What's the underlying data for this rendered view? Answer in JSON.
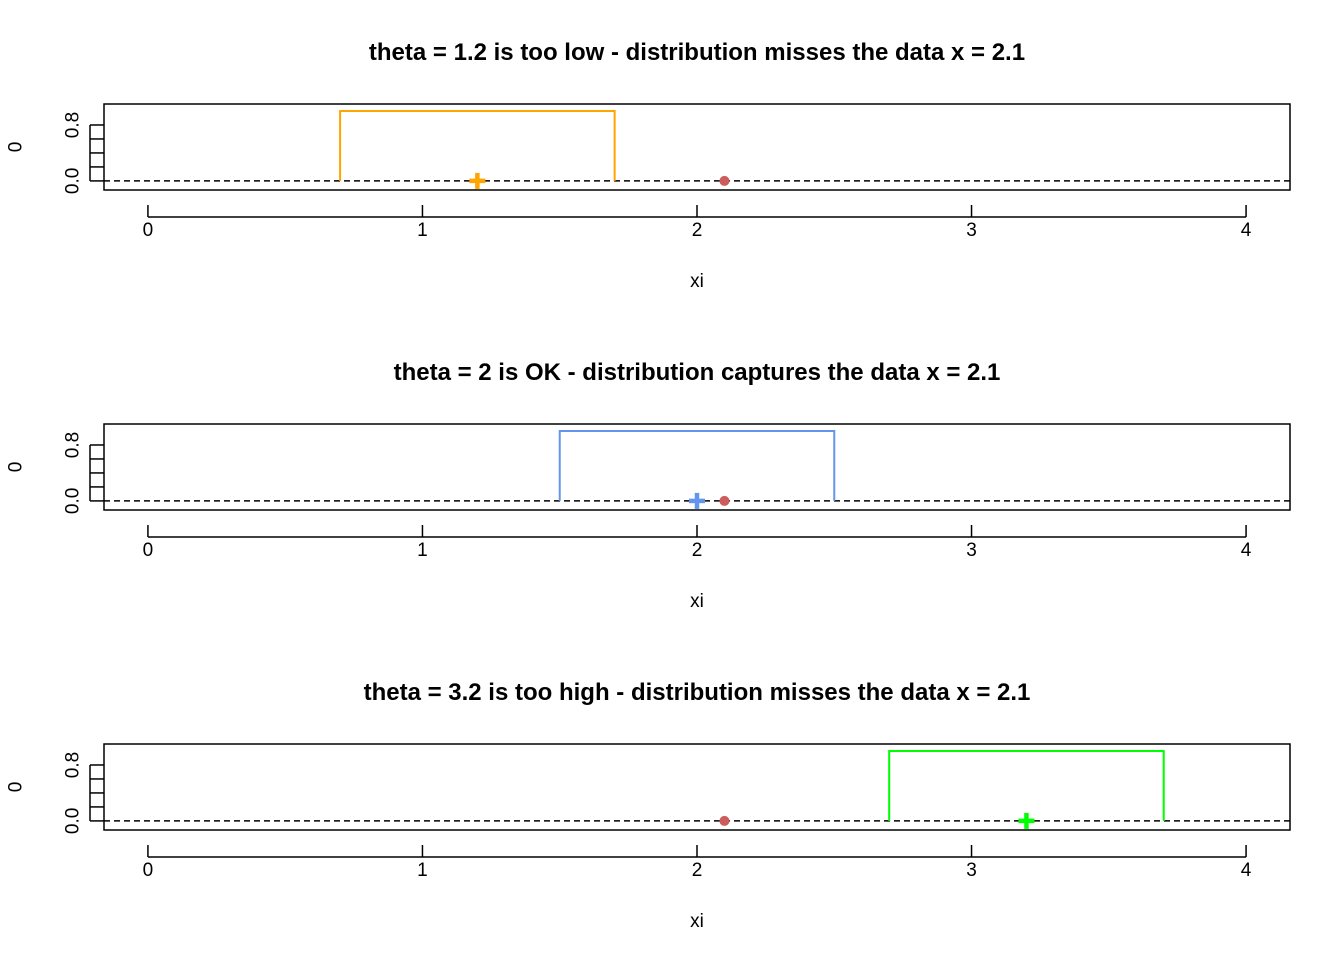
{
  "chart_data": [
    {
      "type": "line",
      "title": "theta = 1.2 is too low - distribution misses the data x = 2.1",
      "xlabel": "xi",
      "ylabel": "0",
      "xlim": [
        -0.16,
        4.16
      ],
      "ylim": [
        -0.13,
        1.1
      ],
      "x_ticks": [
        "0",
        "1",
        "2",
        "3",
        "4"
      ],
      "y_ticks": [
        "0.0",
        "0.8"
      ],
      "theta": 1.2,
      "x_data": 2.1,
      "uniform_density": {
        "from": 0.7,
        "to": 1.7,
        "height": 1.0
      },
      "density_color": "#FFA500",
      "theta_marker_color": "#FFA500",
      "data_point_color": "#CD5C5C",
      "baseline": 0
    },
    {
      "type": "line",
      "title": "theta = 2 is OK - distribution captures the data x = 2.1",
      "xlabel": "xi",
      "ylabel": "0",
      "xlim": [
        -0.16,
        4.16
      ],
      "ylim": [
        -0.13,
        1.1
      ],
      "x_ticks": [
        "0",
        "1",
        "2",
        "3",
        "4"
      ],
      "y_ticks": [
        "0.0",
        "0.8"
      ],
      "theta": 2.0,
      "x_data": 2.1,
      "uniform_density": {
        "from": 1.5,
        "to": 2.5,
        "height": 1.0
      },
      "density_color": "#6495ED",
      "theta_marker_color": "#6495ED",
      "data_point_color": "#CD5C5C",
      "baseline": 0
    },
    {
      "type": "line",
      "title": "theta = 3.2 is too high - distribution misses the data x = 2.1",
      "xlabel": "xi",
      "ylabel": "0",
      "xlim": [
        -0.16,
        4.16
      ],
      "ylim": [
        -0.13,
        1.1
      ],
      "x_ticks": [
        "0",
        "1",
        "2",
        "3",
        "4"
      ],
      "y_ticks": [
        "0.0",
        "0.8"
      ],
      "theta": 3.2,
      "x_data": 2.1,
      "uniform_density": {
        "from": 2.7,
        "to": 3.7,
        "height": 1.0
      },
      "density_color": "#00FF00",
      "theta_marker_color": "#00FF00",
      "data_point_color": "#CD5C5C",
      "baseline": 0
    }
  ]
}
